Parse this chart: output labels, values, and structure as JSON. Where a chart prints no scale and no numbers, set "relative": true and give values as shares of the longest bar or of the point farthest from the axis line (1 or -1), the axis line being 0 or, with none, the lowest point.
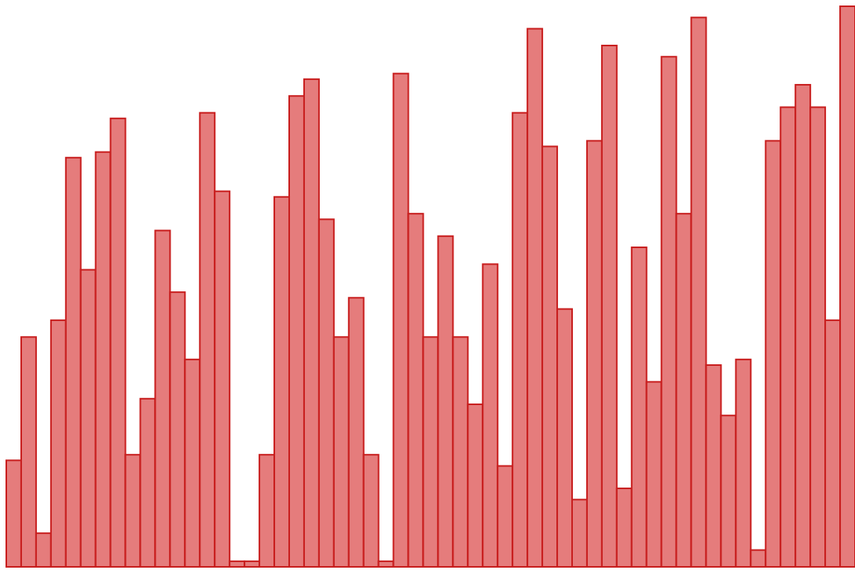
{
  "chart_data": {
    "type": "bar",
    "relative": true,
    "categories": [
      null,
      null,
      null,
      null,
      null,
      null,
      null,
      null,
      null,
      null,
      null,
      null,
      null,
      null,
      null,
      null,
      null,
      null,
      null,
      null,
      null,
      null,
      null,
      null,
      null,
      null,
      null,
      null,
      null,
      null,
      null,
      null,
      null,
      null,
      null,
      null,
      null,
      null,
      null,
      null,
      null,
      null,
      null,
      null,
      null,
      null,
      null,
      null,
      null,
      null,
      null,
      null,
      null,
      null,
      null,
      null,
      null
    ],
    "values": [
      0.19,
      0.41,
      0.06,
      0.44,
      0.73,
      0.53,
      0.74,
      0.8,
      0.2,
      0.3,
      0.6,
      0.49,
      0.37,
      0.81,
      0.67,
      0.01,
      0.01,
      0.2,
      0.66,
      0.84,
      0.87,
      0.62,
      0.41,
      0.48,
      0.2,
      0.01,
      0.88,
      0.63,
      0.41,
      0.59,
      0.41,
      0.29,
      0.54,
      0.18,
      0.81,
      0.96,
      0.75,
      0.46,
      0.12,
      0.76,
      0.93,
      0.14,
      0.57,
      0.33,
      0.91,
      0.63,
      0.98,
      0.36,
      0.27,
      0.37,
      0.03,
      0.76,
      0.82,
      0.86,
      0.82,
      0.44,
      1
    ],
    "color": "#e57c7c"
  }
}
